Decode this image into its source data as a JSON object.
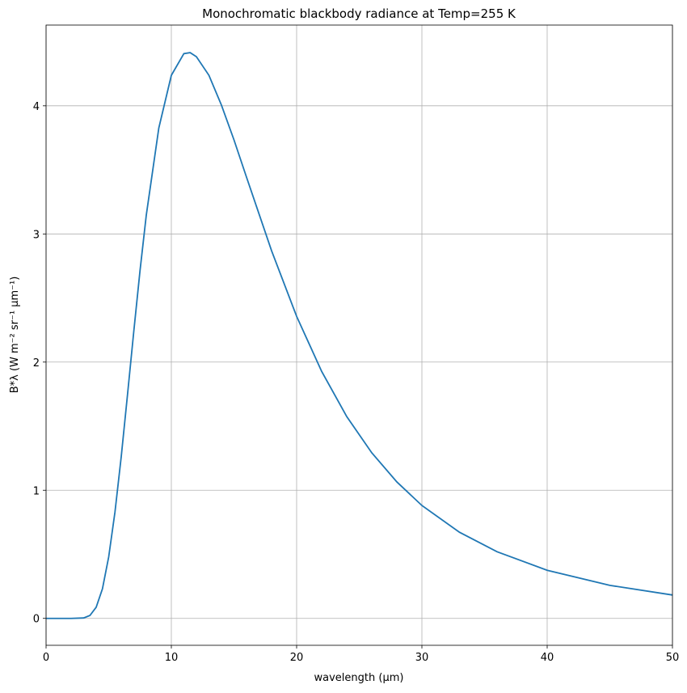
{
  "chart_data": {
    "type": "line",
    "title": "Monochromatic blackbody radiance at Temp=255 K",
    "xlabel": "wavelength (μm)",
    "ylabel": "B*λ  (W m⁻² sr⁻¹ μm⁻¹)",
    "x": [
      0,
      1,
      2,
      3,
      3.5,
      4,
      4.5,
      5,
      5.5,
      6,
      6.5,
      7,
      7.5,
      8,
      9,
      10,
      11,
      11.5,
      12,
      13,
      14,
      15,
      16,
      18,
      20,
      22,
      24,
      26,
      28,
      30,
      33,
      36,
      40,
      45,
      50
    ],
    "series": [
      {
        "name": "B",
        "color": "#1f77b4",
        "values": [
          0,
          0,
          0,
          0.0033,
          0.0227,
          0.0871,
          0.231,
          0.48,
          0.83,
          1.262,
          1.745,
          2.238,
          2.714,
          3.147,
          3.827,
          4.238,
          4.407,
          4.415,
          4.383,
          4.238,
          4.005,
          3.734,
          3.443,
          2.869,
          2.357,
          1.927,
          1.575,
          1.292,
          1.065,
          0.881,
          0.672,
          0.52,
          0.3755,
          0.2578,
          0.1824
        ]
      }
    ],
    "xlim": [
      0,
      50
    ],
    "xticks": [
      0,
      10,
      20,
      30,
      40,
      50
    ],
    "ylim": [
      -0.21,
      4.63
    ],
    "yticks": [
      0,
      1,
      2,
      3,
      4
    ],
    "grid": true
  }
}
